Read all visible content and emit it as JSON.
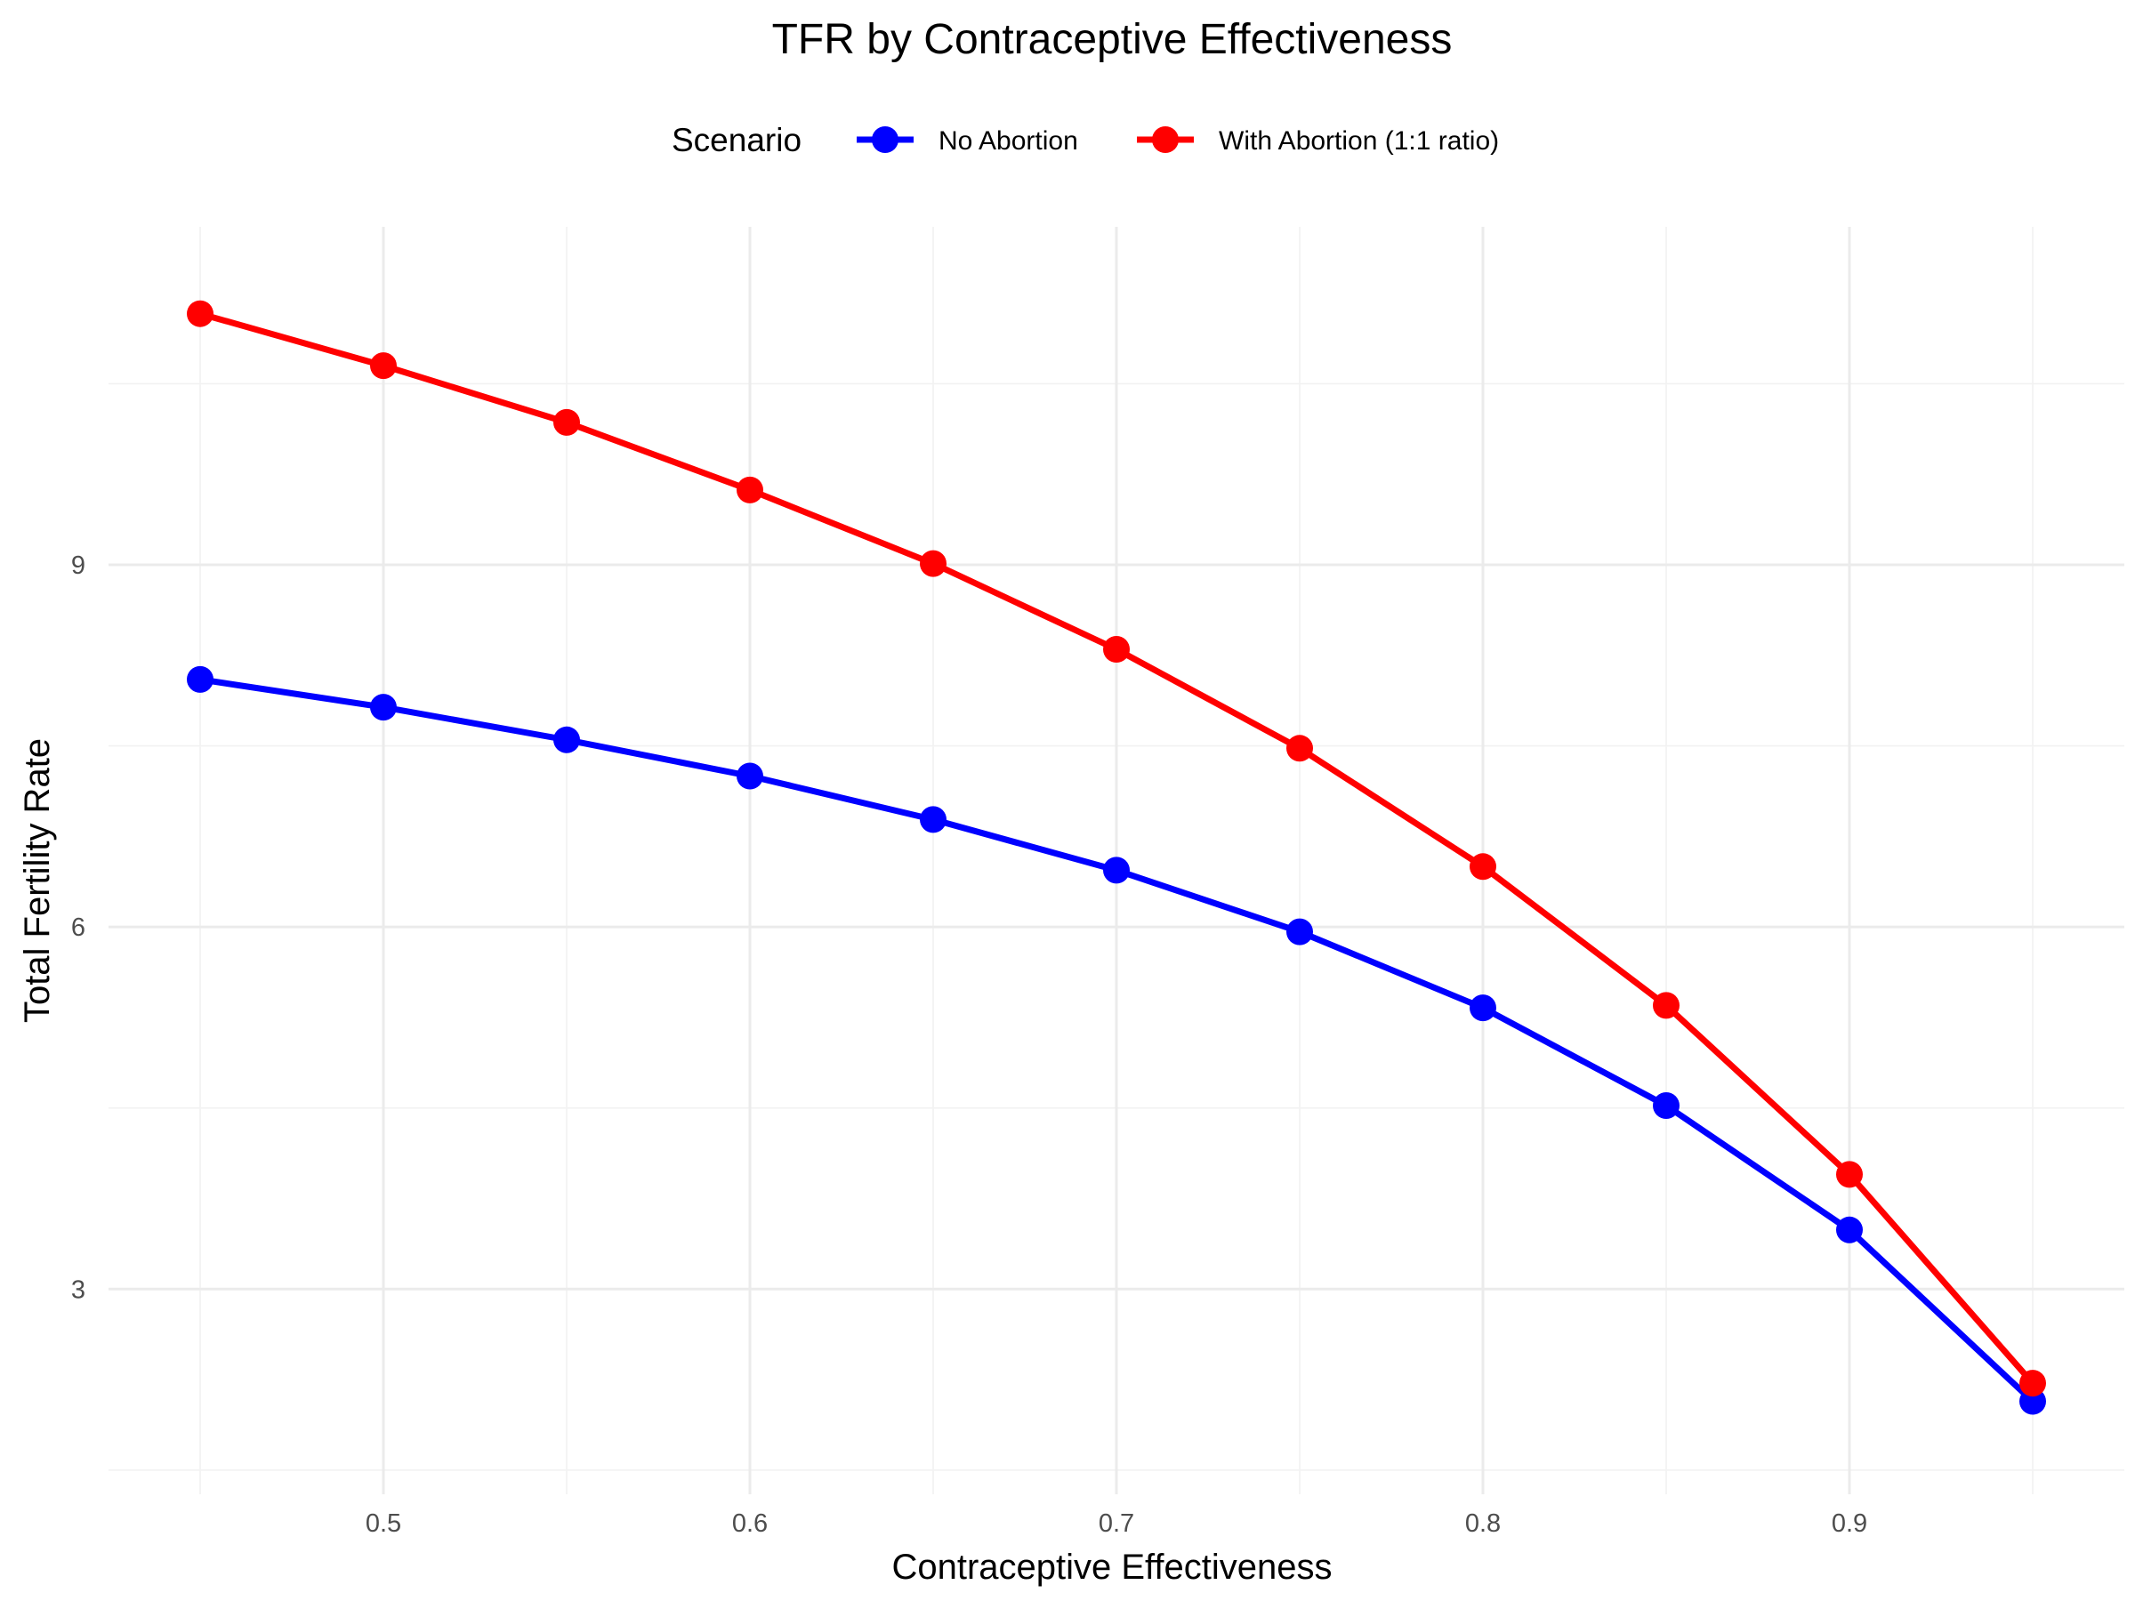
{
  "chart_data": {
    "type": "line",
    "title": "TFR by Contraceptive Effectiveness",
    "xlabel": "Contraceptive Effectiveness",
    "ylabel": "Total Fertility Rate",
    "x": [
      0.45,
      0.5,
      0.55,
      0.6,
      0.65,
      0.7,
      0.75,
      0.8,
      0.85,
      0.9,
      0.95
    ],
    "xlim": [
      0.425,
      0.975
    ],
    "ylim": [
      1.3,
      11.8
    ],
    "xticks": [
      0.5,
      0.6,
      0.7,
      0.8,
      0.9
    ],
    "xtick_labels": [
      "0.5",
      "0.6",
      "0.7",
      "0.8",
      "0.9"
    ],
    "yticks": [
      3,
      6,
      9
    ],
    "ytick_labels": [
      "3",
      "6",
      "9"
    ],
    "grid": true,
    "legend": {
      "title": "Scenario",
      "position": "top"
    },
    "series": [
      {
        "name": "No Abortion",
        "color": "#0000FF",
        "values": [
          8.05,
          7.82,
          7.55,
          7.25,
          6.89,
          6.47,
          5.96,
          5.33,
          4.52,
          3.49,
          2.07
        ]
      },
      {
        "name": "With Abortion (1:1 ratio)",
        "color": "#FF0000",
        "values": [
          11.08,
          10.65,
          10.18,
          9.62,
          9.01,
          8.3,
          7.48,
          6.5,
          5.35,
          3.95,
          2.22
        ]
      }
    ]
  }
}
